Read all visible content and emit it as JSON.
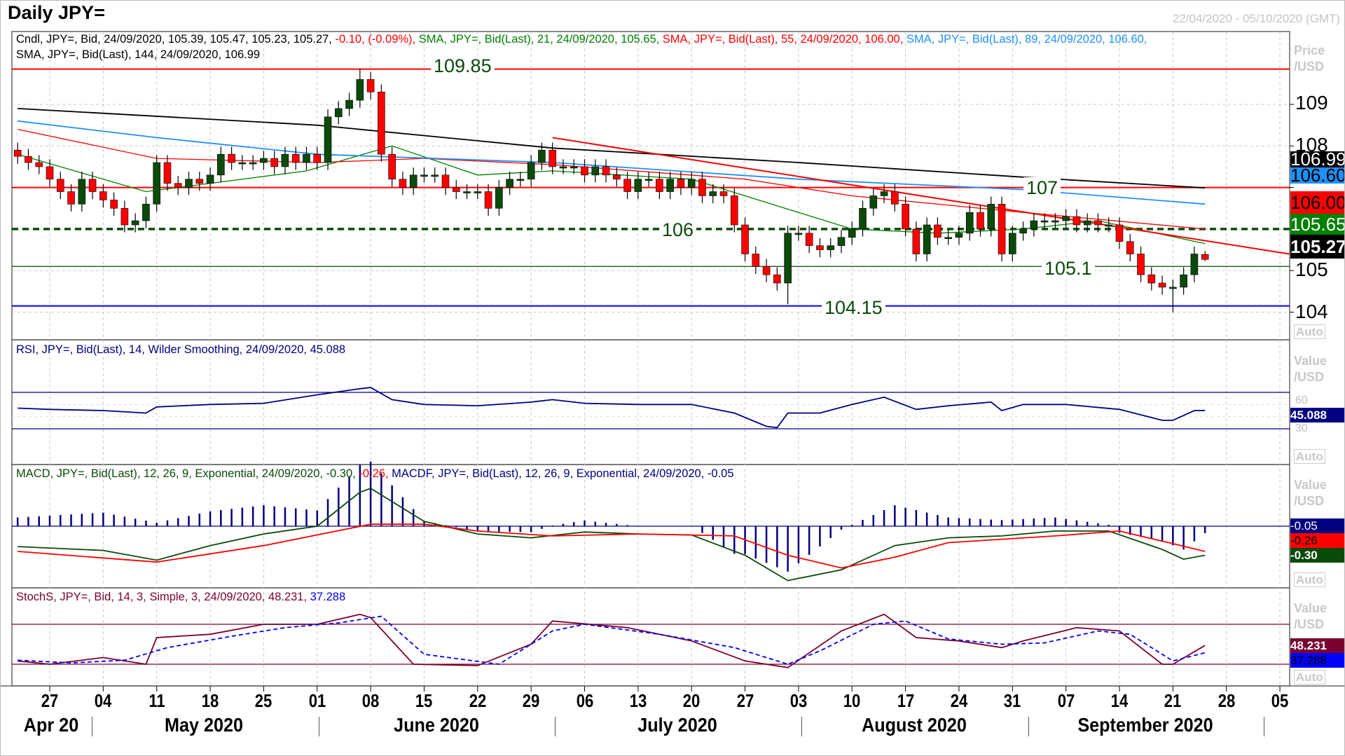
{
  "header": {
    "title": "Daily JPY=",
    "date_range": "22/04/2020 - 05/10/2020 (GMT)"
  },
  "legends": {
    "price_line1": [
      {
        "text": "Cndl, JPY=, Bid, 24/09/2020, 105.39, 105.47, 105.23, 105.27, ",
        "color": "#000000"
      },
      {
        "text": "-0.10, (-0.09%), ",
        "color": "#ff0000"
      },
      {
        "text": "SMA, JPY=, Bid(Last),  21, 24/09/2020, 105.65, ",
        "color": "#008000"
      },
      {
        "text": "SMA, JPY=, Bid(Last),  55, 24/09/2020, 106.00, ",
        "color": "#ff0000"
      },
      {
        "text": "SMA, JPY=, Bid(Last),  89, 24/09/2020, 106.60,",
        "color": "#1e90ff"
      }
    ],
    "price_line2": [
      {
        "text": "SMA, JPY=, Bid(Last),  144, 24/09/2020, 106.99",
        "color": "#000000"
      }
    ],
    "rsi": "RSI, JPY=, Bid(Last),  14, Wilder Smoothing, 24/09/2020, 45.088",
    "macd": [
      {
        "text": "MACD, JPY=, Bid(Last),  12, 26, 9, Exponential, 24/09/2020, -0.30, ",
        "color": "#0a4a0a"
      },
      {
        "text": "-0.26, ",
        "color": "#ff0000"
      },
      {
        "text": "MACDF, JPY=, Bid(Last),  12, 26, 9, Exponential, 24/09/2020, -0.05",
        "color": "#000080"
      }
    ],
    "stoch": [
      {
        "text": "StochS, JPY=, Bid,  14, 3, Simple, 3, 24/09/2020, 48.231, ",
        "color": "#7a0030"
      },
      {
        "text": "37.288",
        "color": "#0000ff"
      }
    ]
  },
  "axes": {
    "price_label": [
      "Price",
      "/USD"
    ],
    "value_label": [
      "Value",
      "/USD"
    ],
    "auto": "Auto",
    "price_ticks": [
      "109",
      "108",
      "105",
      "104"
    ],
    "rsi_ticks": [
      "60",
      "30"
    ],
    "date_ticks": [
      "27",
      "04",
      "11",
      "18",
      "25",
      "01",
      "08",
      "15",
      "22",
      "29",
      "06",
      "13",
      "20",
      "27",
      "03",
      "10",
      "17",
      "24",
      "31",
      "07",
      "14",
      "21",
      "28",
      "05"
    ],
    "months": [
      "Apr 20",
      "May 2020",
      "June 2020",
      "July 2020",
      "August 2020",
      "September 2020"
    ]
  },
  "tags": {
    "sma144": {
      "text": "106.99",
      "bg": "#000000",
      "fg": "#ffffff"
    },
    "sma89": {
      "text": "106.60",
      "bg": "#1e90ff",
      "fg": "#000000"
    },
    "sma55": {
      "text": "106.00",
      "bg": "#ff0000",
      "fg": "#000000"
    },
    "sma21": {
      "text": "105.65",
      "bg": "#008000",
      "fg": "#ffffff"
    },
    "last": {
      "text": "105.27",
      "bg": "#000000",
      "fg": "#ffffff"
    },
    "rsi": {
      "text": "45.088",
      "bg": "#000080",
      "fg": "#ffffff"
    },
    "macdf": {
      "text": "-0.05",
      "bg": "#000080",
      "fg": "#ffffff"
    },
    "signal": {
      "text": "-0.26",
      "bg": "#ff0000",
      "fg": "#000000"
    },
    "macd": {
      "text": "-0.30",
      "bg": "#0a4a0a",
      "fg": "#ffffff"
    },
    "stoch_k": {
      "text": "48.231",
      "bg": "#7a0030",
      "fg": "#ffffff"
    },
    "stoch_d": {
      "text": "37.288",
      "bg": "#0000ff",
      "fg": "#000000"
    }
  },
  "levels": [
    {
      "label": "109.85",
      "value": 109.85,
      "color": "#ff0000",
      "style": "solid"
    },
    {
      "label": "107",
      "value": 107.0,
      "color": "#ff0000",
      "style": "solid"
    },
    {
      "label": "106",
      "value": 106.0,
      "color": "#0a4a0a",
      "style": "dashed"
    },
    {
      "label": "105.1",
      "value": 105.1,
      "color": "#0a4a0a",
      "style": "thin"
    },
    {
      "label": "104.15",
      "value": 104.15,
      "color": "#0000ff",
      "style": "solid"
    }
  ],
  "chart_data": {
    "type": "candlestick",
    "instrument": "JPY=",
    "start_date": "2020-04-22",
    "y_range": [
      103.6,
      110.3
    ],
    "closes": [
      107.75,
      107.6,
      107.5,
      107.2,
      106.9,
      106.6,
      107.2,
      106.9,
      106.7,
      106.5,
      106.1,
      106.2,
      106.6,
      107.6,
      107.1,
      107.0,
      107.2,
      107.1,
      107.3,
      107.8,
      107.6,
      107.6,
      107.6,
      107.7,
      107.5,
      107.8,
      107.6,
      107.8,
      107.6,
      108.7,
      108.9,
      109.1,
      109.6,
      109.3,
      107.8,
      107.2,
      107.0,
      107.3,
      107.3,
      107.3,
      107.0,
      106.9,
      106.9,
      106.9,
      106.5,
      107.0,
      107.2,
      107.2,
      107.6,
      107.9,
      107.5,
      107.5,
      107.5,
      107.3,
      107.5,
      107.3,
      107.2,
      106.9,
      107.2,
      107.2,
      106.9,
      107.2,
      107.0,
      107.2,
      106.8,
      106.9,
      106.8,
      106.1,
      105.4,
      105.1,
      104.9,
      104.7,
      105.9,
      105.9,
      105.6,
      105.5,
      105.6,
      105.8,
      106.0,
      106.5,
      106.8,
      106.9,
      106.6,
      106.0,
      105.4,
      106.1,
      105.8,
      105.8,
      105.9,
      106.4,
      106.0,
      106.6,
      105.4,
      105.9,
      106.0,
      106.2,
      106.2,
      106.2,
      106.3,
      106.1,
      106.2,
      106.1,
      106.1,
      105.7,
      105.4,
      104.9,
      104.7,
      104.6,
      104.6,
      104.9,
      105.4,
      105.27
    ],
    "last_candle": {
      "date": "24/09/2020",
      "open": 105.39,
      "high": 105.47,
      "low": 105.23,
      "close": 105.27
    },
    "notable_extremes": [
      {
        "date": "05/06",
        "high": 109.85
      },
      {
        "date": "31/07",
        "low": 104.19
      },
      {
        "date": "21/09",
        "low": 104.0
      }
    ],
    "sma": [
      {
        "period": 144,
        "color": "#000000",
        "points": [
          [
            "22/04",
            108.9
          ],
          [
            "01/06",
            108.5
          ],
          [
            "01/07",
            107.95
          ],
          [
            "03/08",
            107.6
          ],
          [
            "01/09",
            107.25
          ],
          [
            "24/09",
            106.99
          ]
        ]
      },
      {
        "period": 89,
        "color": "#1e90ff",
        "points": [
          [
            "22/04",
            108.6
          ],
          [
            "11/05",
            108.2
          ],
          [
            "01/06",
            107.8
          ],
          [
            "01/07",
            107.6
          ],
          [
            "03/08",
            107.2
          ],
          [
            "01/09",
            106.95
          ],
          [
            "24/09",
            106.6
          ]
        ]
      },
      {
        "period": 55,
        "color": "#ff0000",
        "points": [
          [
            "22/04",
            108.4
          ],
          [
            "11/05",
            107.7
          ],
          [
            "01/06",
            107.6
          ],
          [
            "15/06",
            107.7
          ],
          [
            "01/07",
            107.55
          ],
          [
            "27/07",
            107.2
          ],
          [
            "10/08",
            106.8
          ],
          [
            "01/09",
            106.4
          ],
          [
            "24/09",
            106.0
          ]
        ]
      },
      {
        "period": 21,
        "color": "#008000",
        "points": [
          [
            "22/04",
            107.8
          ],
          [
            "08/05",
            106.9
          ],
          [
            "29/05",
            107.4
          ],
          [
            "10/06",
            108.0
          ],
          [
            "22/06",
            107.3
          ],
          [
            "01/07",
            107.4
          ],
          [
            "20/07",
            107.2
          ],
          [
            "03/08",
            106.4
          ],
          [
            "10/08",
            106.0
          ],
          [
            "20/08",
            105.9
          ],
          [
            "01/09",
            106.0
          ],
          [
            "10/09",
            106.2
          ],
          [
            "24/09",
            105.65
          ]
        ]
      }
    ],
    "trendline": {
      "color": "#ff0000",
      "points": [
        [
          "01/07",
          108.2
        ],
        [
          "24/09",
          105.72
        ]
      ]
    },
    "rsi": {
      "period": 14,
      "levels": [
        60,
        30
      ],
      "range": [
        20,
        80
      ],
      "points": [
        [
          "22/04",
          47
        ],
        [
          "27/04",
          46
        ],
        [
          "04/05",
          45
        ],
        [
          "08/05",
          43
        ],
        [
          "11/05",
          48
        ],
        [
          "18/05",
          50
        ],
        [
          "25/05",
          51
        ],
        [
          "01/06",
          58
        ],
        [
          "05/06",
          63
        ],
        [
          "08/06",
          64
        ],
        [
          "10/06",
          54
        ],
        [
          "15/06",
          50
        ],
        [
          "22/06",
          49
        ],
        [
          "29/06",
          52
        ],
        [
          "01/07",
          54
        ],
        [
          "06/07",
          51
        ],
        [
          "13/07",
          50
        ],
        [
          "20/07",
          50
        ],
        [
          "24/07",
          43
        ],
        [
          "29/07",
          32
        ],
        [
          "30/07",
          31
        ],
        [
          "31/07",
          43
        ],
        [
          "05/08",
          43
        ],
        [
          "10/08",
          50
        ],
        [
          "13/08",
          56
        ],
        [
          "18/08",
          46
        ],
        [
          "21/08",
          49
        ],
        [
          "27/08",
          52
        ],
        [
          "28/08",
          45
        ],
        [
          "01/09",
          50
        ],
        [
          "07/09",
          50
        ],
        [
          "14/09",
          46
        ],
        [
          "18/09",
          37
        ],
        [
          "21/09",
          37
        ],
        [
          "23/09",
          45
        ],
        [
          "24/09",
          45.088
        ]
      ]
    },
    "macd": {
      "range": [
        -0.65,
        0.6
      ],
      "macd": [
        [
          "22/04",
          -0.21
        ],
        [
          "04/05",
          -0.25
        ],
        [
          "11/05",
          -0.35
        ],
        [
          "18/05",
          -0.2
        ],
        [
          "25/05",
          -0.08
        ],
        [
          "01/06",
          0.0
        ],
        [
          "05/06",
          0.35
        ],
        [
          "08/06",
          0.39
        ],
        [
          "15/06",
          0.05
        ],
        [
          "22/06",
          -0.08
        ],
        [
          "29/06",
          -0.12
        ],
        [
          "06/07",
          -0.06
        ],
        [
          "13/07",
          -0.08
        ],
        [
          "20/07",
          -0.09
        ],
        [
          "27/07",
          -0.3
        ],
        [
          "31/07",
          -0.56
        ],
        [
          "07/08",
          -0.45
        ],
        [
          "14/08",
          -0.2
        ],
        [
          "21/08",
          -0.12
        ],
        [
          "28/08",
          -0.1
        ],
        [
          "04/09",
          -0.05
        ],
        [
          "11/09",
          -0.05
        ],
        [
          "18/09",
          -0.24
        ],
        [
          "22/09",
          -0.34
        ],
        [
          "24/09",
          -0.3
        ]
      ],
      "signal": [
        [
          "22/04",
          -0.26
        ],
        [
          "11/05",
          -0.37
        ],
        [
          "25/05",
          -0.2
        ],
        [
          "08/06",
          0.02
        ],
        [
          "15/06",
          0.02
        ],
        [
          "22/06",
          -0.05
        ],
        [
          "01/07",
          -0.1
        ],
        [
          "13/07",
          -0.08
        ],
        [
          "24/07",
          -0.1
        ],
        [
          "31/07",
          -0.3
        ],
        [
          "07/08",
          -0.43
        ],
        [
          "14/08",
          -0.32
        ],
        [
          "21/08",
          -0.17
        ],
        [
          "04/09",
          -0.1
        ],
        [
          "14/09",
          -0.05
        ],
        [
          "21/09",
          -0.18
        ],
        [
          "24/09",
          -0.26
        ]
      ]
    },
    "stoch": {
      "levels": [
        80,
        20
      ],
      "range": [
        0,
        100
      ],
      "k": [
        [
          "22/04",
          25
        ],
        [
          "27/04",
          20
        ],
        [
          "04/05",
          30
        ],
        [
          "08/05",
          20
        ],
        [
          "11/05",
          60
        ],
        [
          "18/05",
          65
        ],
        [
          "25/05",
          80
        ],
        [
          "01/06",
          80
        ],
        [
          "05/06",
          95
        ],
        [
          "08/06",
          90
        ],
        [
          "12/06",
          20
        ],
        [
          "22/06",
          18
        ],
        [
          "29/06",
          50
        ],
        [
          "01/07",
          85
        ],
        [
          "10/07",
          75
        ],
        [
          "20/07",
          55
        ],
        [
          "27/07",
          25
        ],
        [
          "31/07",
          15
        ],
        [
          "07/08",
          70
        ],
        [
          "13/08",
          95
        ],
        [
          "18/08",
          60
        ],
        [
          "24/08",
          55
        ],
        [
          "28/08",
          45
        ],
        [
          "01/09",
          55
        ],
        [
          "08/09",
          75
        ],
        [
          "14/09",
          70
        ],
        [
          "18/09",
          20
        ],
        [
          "21/09",
          20
        ],
        [
          "24/09",
          48.231
        ]
      ],
      "d": [
        [
          "22/04",
          26
        ],
        [
          "29/04",
          22
        ],
        [
          "06/05",
          26
        ],
        [
          "12/05",
          45
        ],
        [
          "20/05",
          62
        ],
        [
          "27/05",
          75
        ],
        [
          "03/06",
          82
        ],
        [
          "09/06",
          92
        ],
        [
          "15/06",
          35
        ],
        [
          "24/06",
          20
        ],
        [
          "01/07",
          70
        ],
        [
          "06/07",
          80
        ],
        [
          "15/07",
          65
        ],
        [
          "24/07",
          45
        ],
        [
          "31/07",
          20
        ],
        [
          "05/08",
          40
        ],
        [
          "12/08",
          80
        ],
        [
          "17/08",
          85
        ],
        [
          "21/08",
          58
        ],
        [
          "28/08",
          50
        ],
        [
          "03/09",
          52
        ],
        [
          "10/09",
          70
        ],
        [
          "15/09",
          65
        ],
        [
          "21/09",
          25
        ],
        [
          "24/09",
          37.288
        ]
      ]
    }
  }
}
